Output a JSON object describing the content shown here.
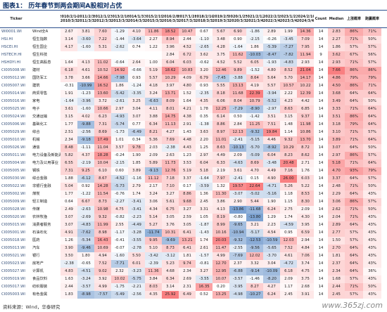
{
  "header": {
    "title": "图表1： 历年春节到两会期间A股相对占优"
  },
  "table": {
    "columns": [
      "Ticker",
      "2010/2/14\n2010/3/3",
      "2011/2/3\n2011/3/3",
      "2012/1/23\n2012/3/3",
      "2013/2/10\n2013/3/3",
      "2014/1/31\n2014/3/3",
      "2015/2/19\n2015/3/3",
      "2016/2/8\n2016/3/3",
      "2017/1/28\n2017/3/3",
      "2018/2/16\n2018/3/3",
      "2019/2/5\n2019/3/3",
      "2020/1/25\n2020/3/3",
      "2021/2/12\n2021/3/4",
      "2022/2/1\n2022/3/4",
      "2023/1/22\n2023/3/4",
      "2024/2/10\n2024/3/4",
      "Count",
      "Median",
      "上涨概率",
      "跑赢概率"
    ],
    "rows": [
      [
        "WI0001.WI",
        "Wind全A",
        "2.67",
        "3.81",
        "7.60",
        "-1.29",
        "4.10",
        "11.86",
        "18.52",
        "10.47",
        "0.67",
        "5.67",
        "6.90",
        "-1.86",
        "2.89",
        "1.99",
        "14.36",
        "14",
        "2.83",
        "86%",
        "71%"
      ],
      [
        "HSI.HI",
        "恒生指数",
        "3.14",
        "-3.60",
        "7.22",
        "-1.44",
        "-3.64",
        "2.27",
        "8.94",
        "2.44",
        "-1.10",
        "3.48",
        "0.90",
        "-2.15",
        "-0.26",
        "-3.45",
        "7.09",
        "14",
        "2.27",
        "71%",
        "50%"
      ],
      [
        "HSCEI.HI",
        "恒生国企",
        "4.17",
        "-1.60",
        "5.31",
        "-2.62",
        "0.74",
        "1.22",
        "3.96",
        "4.52",
        "-2.65",
        "4.28",
        "-1.64",
        "1.86",
        "-5.39",
        "-7.27",
        "7.95",
        "14",
        "1.86",
        "57%",
        "57%"
      ],
      [
        "HSTECH.HI",
        "恒生科技",
        null,
        null,
        null,
        null,
        null,
        null,
        "2.84",
        "6.72",
        "3.62",
        "3.75",
        "11.62",
        "-10.03",
        "-8.47",
        "-7.82",
        "11.94",
        "9",
        "3.62",
        "67%",
        "56%"
      ],
      [
        "HSHDYI.HI",
        "恒生高股息",
        "1.64",
        "4.13",
        "11.02",
        "-0.64",
        "2.64",
        "1.00",
        "6.04",
        "6.03",
        "-0.62",
        "4.52",
        "5.52",
        "6.05",
        "-1.93",
        "-4.83",
        "2.93",
        "14",
        "2.93",
        "71%",
        "57%"
      ],
      [
        "CI005008.WI",
        "建材",
        "6.18",
        "4.61",
        "10.52",
        "14.92",
        "-0.66",
        "5.19",
        "18.62",
        "10.83",
        "3.20",
        "12.46",
        "9.89",
        "-1.52",
        "4.80",
        "8.52",
        "21.04",
        "14",
        "7.66",
        "86%",
        "86%"
      ],
      [
        "CI005012.WI",
        "国防军工",
        "3.78",
        "3.66",
        "14.66",
        "-7.98",
        "0.93",
        "5.57",
        "10.29",
        "4.09",
        "6.79",
        "-7.45",
        "-3.88",
        "8.64",
        "5.64",
        "5.70",
        "14.17",
        "14",
        "4.86",
        "79%",
        "79%"
      ],
      [
        "CI005007.WI",
        "建筑",
        "-0.31",
        "-10.99",
        "16.52",
        "1.86",
        "-1.24",
        "4.18",
        "3.97",
        "4.80",
        "0.93",
        "5.55",
        "13.13",
        "4.19",
        "5.57",
        "10.57",
        "10.22",
        "14",
        "4.50",
        "86%",
        "71%"
      ],
      [
        "CI005014.WI",
        "商贸零售",
        "1.91",
        "-1.23",
        "13.60",
        "-5.42",
        "-3.35",
        "3.24",
        "13.71",
        "1.52",
        "-2.35",
        "8.18",
        "11.68",
        "22.39",
        "-3.94",
        "2.22",
        "12.39",
        "14",
        "3.68",
        "64%",
        "64%"
      ],
      [
        "CI005016.WI",
        "家电",
        "-1.64",
        "-3.96",
        "3.72",
        "-2.61",
        "3.25",
        "-6.63",
        "8.09",
        "1.64",
        "4.35",
        "6.06",
        "8.04",
        "10.79",
        "-5.52",
        "4.23",
        "4.42",
        "14",
        "3.49",
        "64%",
        "50%"
      ],
      [
        "CI005025.WI",
        "电子",
        "3.61",
        "-1.60",
        "10.66",
        "2.97",
        "3.04",
        "4.11",
        "8.01",
        "4.21",
        "1.78",
        "12.25",
        "-7.29",
        "-8.90",
        "-2.97",
        "8.63",
        "6.85",
        "14",
        "3.33",
        "71%",
        "64%"
      ],
      [
        "CI005024.WI",
        "交通运输",
        "3.15",
        "4.02",
        "6.23",
        "-4.93",
        "3.07",
        "3.88",
        "14.75",
        "4.38",
        "0.35",
        "6.14",
        "0.50",
        "-1.42",
        "3.51",
        "3.15",
        "9.37",
        "14",
        "3.51",
        "86%",
        "64%"
      ],
      [
        "CI005006.WI",
        "基础化工",
        "1.77",
        "-9.88",
        "7.31",
        "-5.74",
        "0.77",
        "6.34",
        "11.13",
        "2.91",
        "-1.38",
        "8.86",
        "2.84",
        "11.25",
        "7.51",
        "1.48",
        "11.98",
        "14",
        "3.18",
        "79%",
        "64%"
      ],
      [
        "CI005029.WI",
        "综合",
        "2.51",
        "-2.56",
        "8.69",
        "-1.73",
        "-6.49",
        "8.21",
        "4.27",
        "1.43",
        "3.63",
        "8.97",
        "12.13",
        "-9.32",
        "19.84",
        "1.14",
        "10.86",
        "14",
        "3.10",
        "71%",
        "57%"
      ],
      [
        "CI005010.WI",
        "机械",
        "2.34",
        "-9.18",
        "17.49",
        "1.01",
        "0.34",
        "5.36",
        "7.69",
        "4.48",
        "2.20",
        "11.01",
        "-2.41",
        "-5.15",
        "4.46",
        "9.32",
        "13.70",
        "14",
        "3.89",
        "71%",
        "64%"
      ],
      [
        "CI005026.WI",
        "通信",
        "8.48",
        "-1.11",
        "11.04",
        "3.57",
        "9.78",
        "2.03",
        "-2.38",
        "4.43",
        "1.25",
        "8.63",
        "-10.13",
        "-5.70",
        "-8.92",
        "10.29",
        "8.72",
        "14",
        "3.07",
        "64%",
        "50%"
      ],
      [
        "CI005011.WI",
        "电力设备及新能源",
        "5.82",
        "4.37",
        "18.28",
        "-0.24",
        "1.90",
        "2.09",
        "2.63",
        "1.23",
        "2.97",
        "4.49",
        "2.09",
        "-5.09",
        "6.04",
        "8.23",
        "8.62",
        "14",
        "2.97",
        "86%",
        "57%"
      ],
      [
        "CI005004.WI",
        "电力及公用事业",
        "6.55",
        "-2.19",
        "10.04",
        "-2.15",
        "1.85",
        "5.89",
        "11.73",
        "3.53",
        "6.04",
        "6.33",
        "-4.63",
        "8.69",
        "-3.48",
        "20.48",
        "2.71",
        "14",
        "5.18",
        "71%",
        "64%"
      ],
      [
        "CI005005.WI",
        "钢铁",
        "7.31",
        "9.25",
        "6.10",
        "0.60",
        "3.89",
        "-9.13",
        "12.76",
        "5.19",
        "5.18",
        "2.19",
        "3.61",
        "4.70",
        "4.49",
        "7.16",
        "1.76",
        "14",
        "4.70",
        "93%",
        "79%"
      ],
      [
        "CI005030.WI",
        "综合金融",
        "1.88",
        "-6.12",
        "8.67",
        "-4.52",
        "-1.16",
        "11.12",
        "7.18",
        "3.37",
        "-1.64",
        "7.97",
        "-2.41",
        "0.15",
        "4.90",
        "26.00",
        "6.03",
        "14",
        "3.37",
        "64%",
        "57%"
      ],
      [
        "CI005022.WI",
        "非银行金融",
        "5.04",
        "0.92",
        "14.28",
        "-5.73",
        "2.79",
        "2.17",
        "7.10",
        "0.17",
        "-3.59",
        "1.32",
        "19.57",
        "22.64",
        "-4.71",
        "5.26",
        "5.22",
        "14",
        "2.48",
        "71%",
        "50%"
      ],
      [
        "CI005002.WI",
        "煤炭",
        "1.77",
        "-1.22",
        "11.54",
        "-0.76",
        "1.74",
        "3.24",
        "3.27",
        "8.86",
        "1.36",
        "11.30",
        "-3.07",
        "-5.02",
        "-5.16",
        "1.18",
        "8.53",
        "14",
        "2.29",
        "64%",
        "43%"
      ],
      [
        "CI005009.WI",
        "轻工制造",
        "0.64",
        "6.67",
        "8.73",
        "-2.27",
        "-3.41",
        "3.06",
        "5.61",
        "9.68",
        "2.45",
        "3.86",
        "2.90",
        "5.44",
        "1.90",
        "1.15",
        "8.30",
        "14",
        "3.06",
        "86%",
        "57%"
      ],
      [
        "CI005028.WI",
        "传媒",
        "2.49",
        "-2.63",
        "10.98",
        "4.75",
        "-3.41",
        "4.34",
        "6.75",
        "3.27",
        "3.31",
        "4.13",
        "-13.86",
        "-11.68",
        "6.24",
        "2.75",
        "2.09",
        "14",
        "2.62",
        "71%",
        "50%"
      ],
      [
        "CI005020.WI",
        "农林牧渔",
        "3.07",
        "-2.69",
        "9.32",
        "-0.82",
        "-2.23",
        "5.14",
        "3.05",
        "2.59",
        "1.05",
        "8.19",
        "-0.80",
        "-13.80",
        "1.29",
        "1.74",
        "4.30",
        "14",
        "2.04",
        "71%",
        "43%"
      ],
      [
        "CI005015.WI",
        "消费者服务",
        "3.07",
        "-4.83",
        "11.99",
        "2.55",
        "-4.49",
        "5.27",
        "3.76",
        "3.05",
        "-1.87",
        "8.99",
        "-9.65",
        "3.21",
        "2.23",
        "-4.59",
        "3.95",
        "14",
        "2.89",
        "64%",
        "43%"
      ],
      [
        "CI005001.WI",
        "石油石化",
        "4.91",
        "-7.62",
        "8.98",
        "-1.17",
        "-3.28",
        "-11.74",
        "10.31",
        "6.41",
        "-1.43",
        "10.16",
        "-10.94",
        "-5.17",
        "4.54",
        "0.95",
        "6.59",
        "14",
        "2.77",
        "57%",
        "43%"
      ],
      [
        "CI005018.WI",
        "医药",
        "1.26",
        "-5.34",
        "16.43",
        "-0.41",
        "-3.55",
        "9.95",
        "-9.69",
        "13.21",
        "1.74",
        "20.03",
        "-9.32",
        "-12.53",
        "-10.59",
        "12.03",
        "2.94",
        "14",
        "1.50",
        "57%",
        "43%"
      ],
      [
        "CI005013.WI",
        "汽车",
        "3.90",
        "-9.46",
        "10.69",
        "-0.07",
        "-2.78",
        "5.10",
        "8.73",
        "6.41",
        "2.61",
        "11.47",
        "-2.55",
        "-9.56",
        "-5.65",
        "7.52",
        "4.84",
        "14",
        "2.70",
        "64%",
        "43%"
      ],
      [
        "CI005021.WI",
        "银行",
        "3.50",
        "1.80",
        "4.94",
        "-1.60",
        "5.50",
        "-3.42",
        "-3.12",
        "1.81",
        "-1.57",
        "4.99",
        "-7.69",
        "12.02",
        "-3.70",
        "4.61",
        "7.06",
        "14",
        "1.81",
        "64%",
        "43%"
      ],
      [
        "CI005023.WI",
        "房地产",
        "-2.38",
        "-0.65",
        "7.52",
        "-7.71",
        "6.01",
        "-2.39",
        "5.23",
        "9.74",
        "-0.81",
        "12.70",
        "2.37",
        "3.32",
        "3.04",
        "-4.72",
        "3.74",
        "14",
        "2.37",
        "64%",
        "43%"
      ],
      [
        "CI005027.WI",
        "计算机",
        "4.83",
        "-4.51",
        "9.02",
        "2.32",
        "-3.23",
        "11.36",
        "4.68",
        "2.34",
        "3.27",
        "12.95",
        "-6.88",
        "-9.14",
        "-10.09",
        "6.18",
        "4.75",
        "14",
        "2.34",
        "64%",
        "36%"
      ],
      [
        "CI005019.WI",
        "食品饮料",
        "1.63",
        "-3.24",
        "3.92",
        "10.02",
        "-5.75",
        "3.84",
        "6.34",
        "2.69",
        "-3.55",
        "10.07",
        "-3.57",
        "-1.46",
        "-8.20",
        "2.09",
        "3.75",
        "14",
        "1.68",
        "57%",
        "43%"
      ],
      [
        "CI005017.WI",
        "纺织服装",
        "2.44",
        "-3.57",
        "4.99",
        "-1.75",
        "-2.21",
        "8.03",
        "3.14",
        "2.31",
        "16.35",
        "0.20",
        "-3.95",
        "8.27",
        "4.27",
        "1.17",
        "2.68",
        "14",
        "2.44",
        "71%",
        "50%"
      ],
      [
        "CI005003.WI",
        "有色金属",
        "1.83",
        "-8.98",
        "-7.57",
        "-5.49",
        "-2.56",
        "4.35",
        "25.92",
        "6.49",
        "0.52",
        "13.25",
        "-4.98",
        "-10.27",
        "6.24",
        "2.45",
        "3.91",
        "14",
        "2.45",
        "57%",
        "43%"
      ]
    ]
  },
  "footer": {
    "source": "资料来源：Wind，华泰研究",
    "watermark": "www.365zj.com"
  }
}
